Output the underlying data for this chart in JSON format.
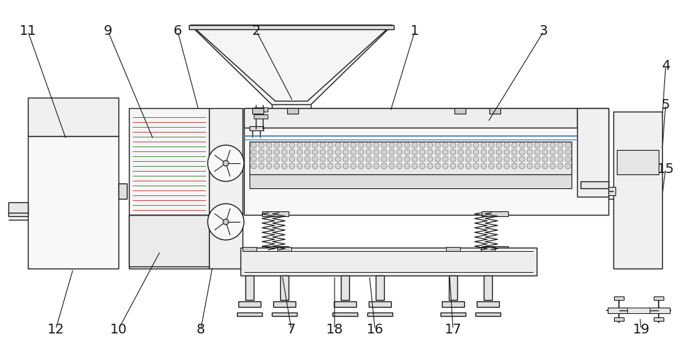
{
  "bg_color": "#ffffff",
  "line_color": "#1a1a1a",
  "lw": 1.0,
  "fig_width": 10.0,
  "fig_height": 4.96
}
